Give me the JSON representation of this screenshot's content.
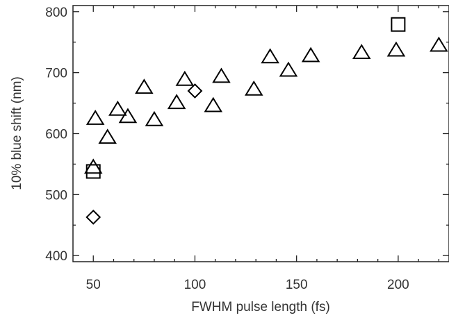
{
  "chart_data": {
    "type": "scatter",
    "title": "",
    "xlabel": "FWHM pulse length (fs)",
    "ylabel": "10% blue shift (nm)",
    "xlim": [
      40,
      225
    ],
    "ylim": [
      390,
      810
    ],
    "xticks": [
      50,
      100,
      150,
      200
    ],
    "yticks": [
      400,
      500,
      600,
      700,
      800
    ],
    "grid": false,
    "legend": "none",
    "series": [
      {
        "marker": "triangle",
        "x": [
          50,
          51,
          57,
          62,
          67,
          75,
          80,
          91,
          95,
          109,
          113,
          129,
          137,
          146,
          157,
          182,
          199,
          220
        ],
        "y": [
          545,
          625,
          594,
          640,
          628,
          676,
          623,
          651,
          689,
          646,
          694,
          673,
          726,
          704,
          728,
          733,
          737,
          745
        ]
      },
      {
        "marker": "square",
        "x": [
          50,
          200
        ],
        "y": [
          538,
          779
        ]
      },
      {
        "marker": "diamond",
        "x": [
          50,
          100
        ],
        "y": [
          463,
          670
        ]
      }
    ]
  }
}
